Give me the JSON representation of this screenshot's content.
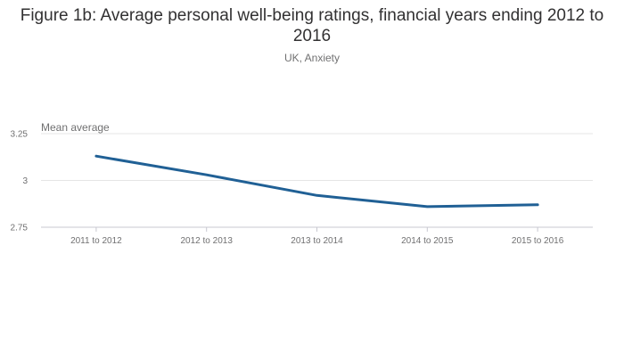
{
  "chart_data": {
    "type": "line",
    "title": "Figure 1b: Average personal well-being ratings, financial years ending 2012 to 2016",
    "subtitle": "UK, Anxiety",
    "ylabel": "Mean average",
    "xlabel": "",
    "categories": [
      "2011 to 2012",
      "2012 to 2013",
      "2013 to 2014",
      "2014 to 2015",
      "2015 to 2016"
    ],
    "series": [
      {
        "name": "Anxiety",
        "values": [
          3.13,
          3.03,
          2.92,
          2.86,
          2.87
        ]
      }
    ],
    "ylim": [
      2.75,
      3.25
    ],
    "yticks": [
      2.75,
      3,
      3.25
    ],
    "ytick_labels": [
      "2.75",
      "3",
      "3.25"
    ],
    "grid": true,
    "legend": "none",
    "line_color": "#206095"
  }
}
